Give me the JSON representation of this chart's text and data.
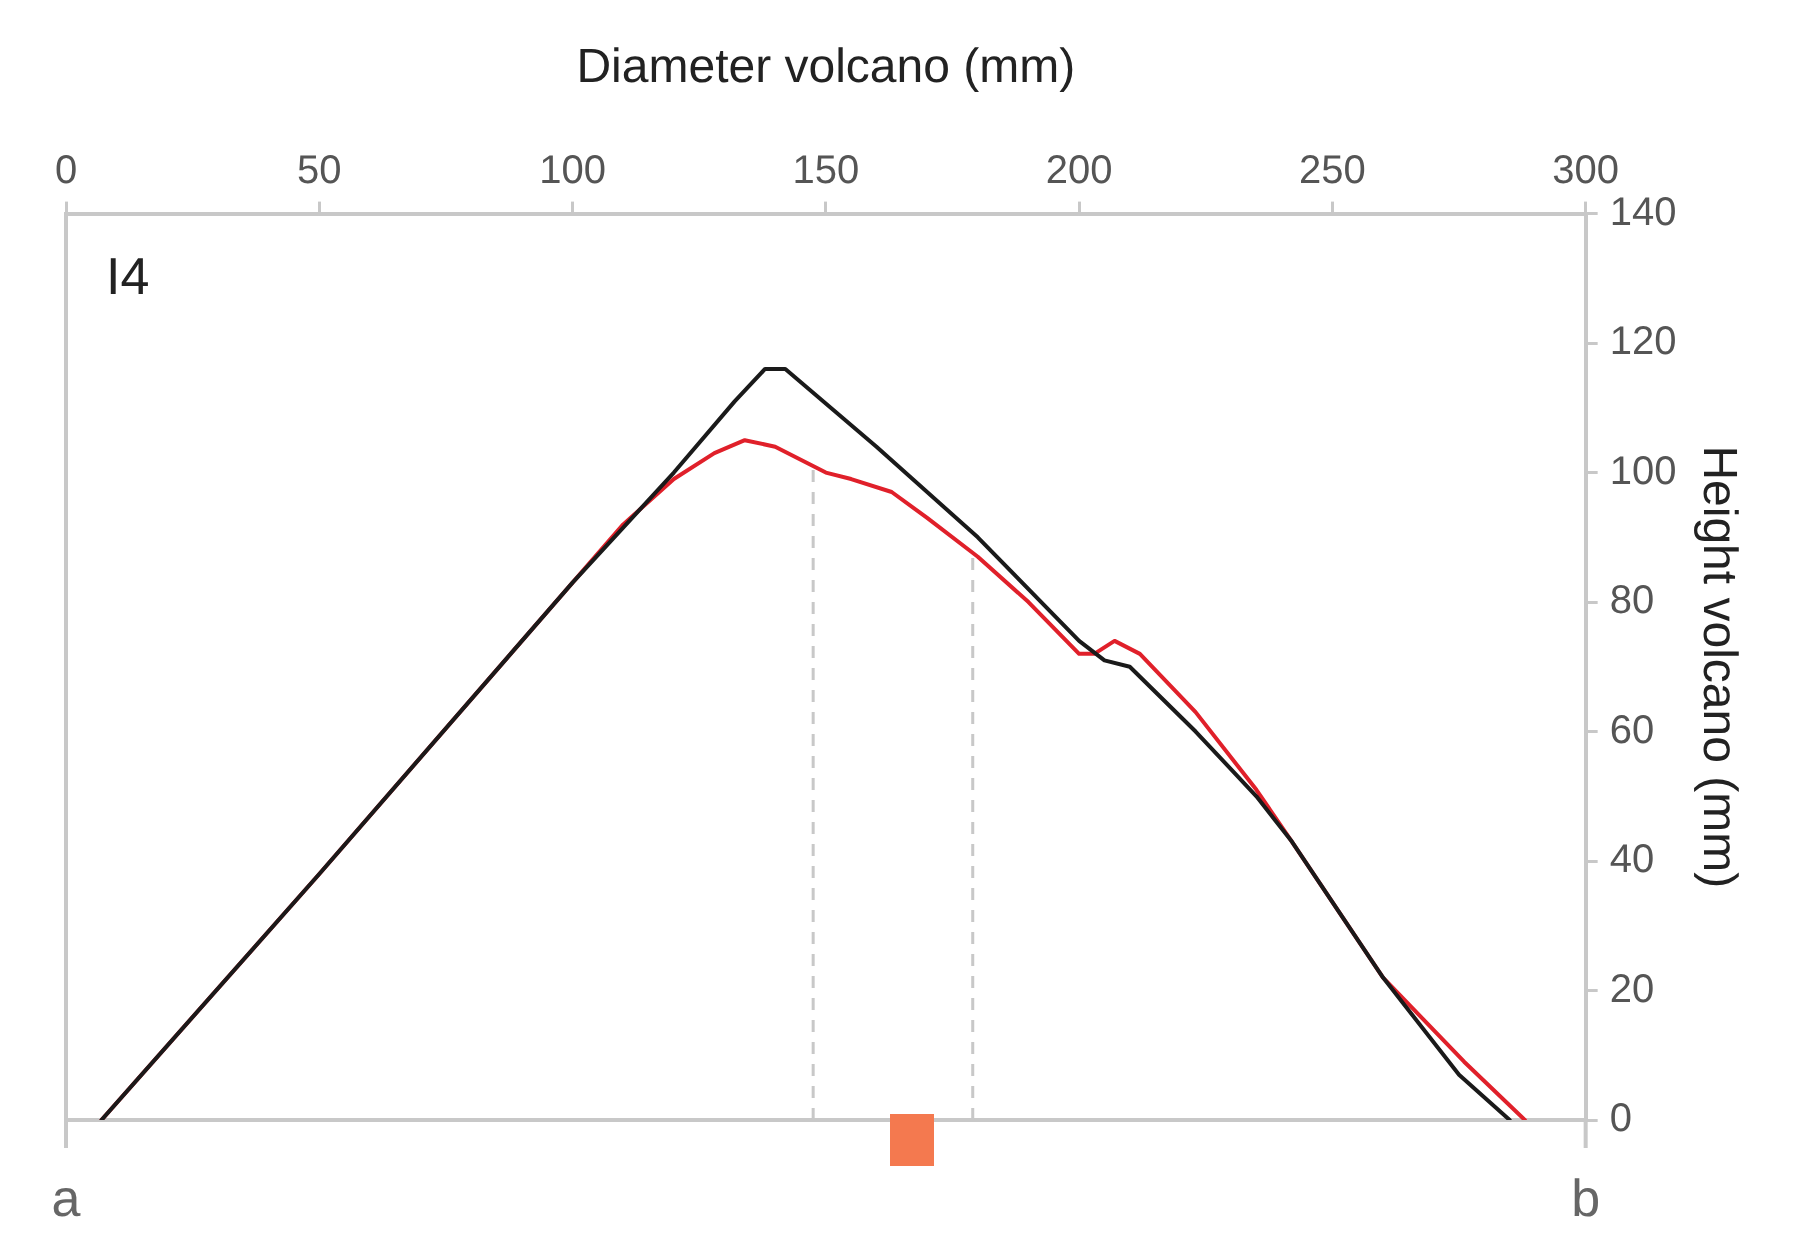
{
  "chart_data": {
    "type": "line",
    "xlabel": "Diameter volcano (mm)",
    "ylabel": "Height volcano (mm)",
    "xlim": [
      0,
      300
    ],
    "xticks": [
      0,
      50,
      100,
      150,
      200,
      250,
      300
    ],
    "ylim": [
      0,
      140
    ],
    "yticks": [
      0,
      20,
      40,
      60,
      80,
      100,
      120,
      140
    ],
    "grid": false,
    "legend": false,
    "marker": "none",
    "line_style": "solid",
    "series": [
      {
        "color": "#1a1a1a",
        "x": [
          7,
          50,
          100,
          120,
          132,
          138,
          142,
          160,
          180,
          200,
          205,
          210,
          223,
          235,
          242,
          260,
          275,
          285
        ],
        "values": [
          0,
          38,
          83,
          100,
          111,
          116,
          116,
          104,
          90,
          74,
          71,
          70,
          60,
          50,
          43,
          22,
          7,
          0
        ]
      },
      {
        "color": "#e0202a",
        "x": [
          7,
          50,
          100,
          110,
          120,
          128,
          134,
          140,
          150,
          155,
          163,
          170,
          180,
          190,
          200,
          203,
          207,
          212,
          223,
          235,
          242,
          260,
          276,
          288
        ],
        "values": [
          0,
          38,
          83,
          92,
          99,
          103,
          105,
          104,
          100,
          99,
          97,
          93,
          87,
          80,
          72,
          72,
          74,
          72,
          63,
          51,
          43,
          22,
          9,
          0
        ]
      }
    ],
    "ref_lines": [
      {
        "axis": "x",
        "value": 147.5,
        "color": "#c8c8c8",
        "line_style": "dashed"
      },
      {
        "axis": "x",
        "value": 179,
        "color": "#c8c8c8",
        "line_style": "dashed"
      }
    ],
    "annotations": [
      "I4",
      "a",
      "b"
    ]
  }
}
